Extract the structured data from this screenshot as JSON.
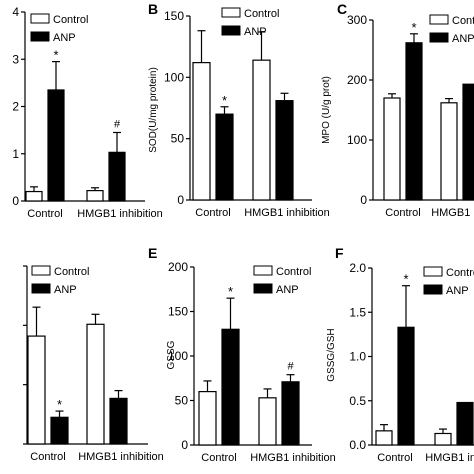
{
  "chart_data": [
    {
      "type": "bar",
      "panel_letter": "",
      "categories": [
        "Control",
        "HMGB1 inhibition"
      ],
      "ylabel": "",
      "ylim": [
        0,
        4
      ],
      "yticks": [
        "0",
        "1",
        "2",
        "3",
        "4"
      ],
      "series": [
        {
          "name": "Control",
          "values": [
            0.2,
            0.22
          ],
          "errors": [
            0.1,
            0.06
          ],
          "marks": [
            "",
            ""
          ]
        },
        {
          "name": "ANP",
          "values": [
            2.35,
            1.03
          ],
          "errors": [
            0.6,
            0.42
          ],
          "marks": [
            "*",
            "#"
          ]
        }
      ]
    },
    {
      "type": "bar",
      "panel_letter": "B",
      "categories": [
        "Control",
        "HMGB1 inhibition"
      ],
      "ylabel": "SOD(U/mg protein)",
      "ylim": [
        0,
        150
      ],
      "yticks": [
        "0",
        "50",
        "100",
        "150"
      ],
      "series": [
        {
          "name": "Control",
          "values": [
            112,
            114
          ],
          "errors": [
            26,
            23
          ],
          "marks": [
            "",
            ""
          ]
        },
        {
          "name": "ANP",
          "values": [
            70,
            81
          ],
          "errors": [
            6,
            6
          ],
          "marks": [
            "*",
            ""
          ]
        }
      ]
    },
    {
      "type": "bar",
      "panel_letter": "C",
      "categories": [
        "Control",
        "HMGB1 inhibition"
      ],
      "ylabel": "MPO (U/g prot)",
      "ylim": [
        0,
        300
      ],
      "yticks": [
        "0",
        "100",
        "200",
        "300"
      ],
      "series": [
        {
          "name": "Control",
          "values": [
            170,
            162
          ],
          "errors": [
            7,
            7
          ],
          "marks": [
            "",
            ""
          ]
        },
        {
          "name": "ANP",
          "values": [
            262,
            193
          ],
          "errors": [
            15,
            0
          ],
          "marks": [
            "*",
            ""
          ]
        }
      ]
    },
    {
      "type": "bar",
      "panel_letter": "",
      "categories": [
        "Control",
        "HMGB1 inhibition"
      ],
      "ylabel": "",
      "ylim": [
        0,
        800
      ],
      "yticks": [
        "",
        "",
        "",
        ""
      ],
      "series": [
        {
          "name": "Control",
          "values": [
            485,
            538
          ],
          "errors": [
            130,
            45
          ],
          "marks": [
            "",
            ""
          ]
        },
        {
          "name": "ANP",
          "values": [
            120,
            205
          ],
          "errors": [
            28,
            35
          ],
          "marks": [
            "*",
            ""
          ]
        }
      ]
    },
    {
      "type": "bar",
      "panel_letter": "E",
      "categories": [
        "Control",
        "HMGB1 inhibition"
      ],
      "ylabel": "GSSG",
      "ylim": [
        0,
        200
      ],
      "yticks": [
        "0",
        "50",
        "100",
        "150",
        "200"
      ],
      "series": [
        {
          "name": "Control",
          "values": [
            60,
            53
          ],
          "errors": [
            12,
            10
          ],
          "marks": [
            "",
            ""
          ]
        },
        {
          "name": "ANP",
          "values": [
            130,
            71
          ],
          "errors": [
            35,
            8
          ],
          "marks": [
            "*",
            "#"
          ]
        }
      ]
    },
    {
      "type": "bar",
      "panel_letter": "F",
      "categories": [
        "Control",
        "HMGB1 inhibition"
      ],
      "ylabel": "GSSG/GSH",
      "ylim": [
        0,
        2.0
      ],
      "yticks": [
        "0.0",
        "0.5",
        "1.0",
        "1.5",
        "2.0"
      ],
      "series": [
        {
          "name": "Control",
          "values": [
            0.16,
            0.13
          ],
          "errors": [
            0.07,
            0.05
          ],
          "marks": [
            "",
            ""
          ]
        },
        {
          "name": "ANP",
          "values": [
            1.33,
            0.48
          ],
          "errors": [
            0.47,
            0
          ],
          "marks": [
            "*",
            ""
          ]
        }
      ]
    }
  ]
}
